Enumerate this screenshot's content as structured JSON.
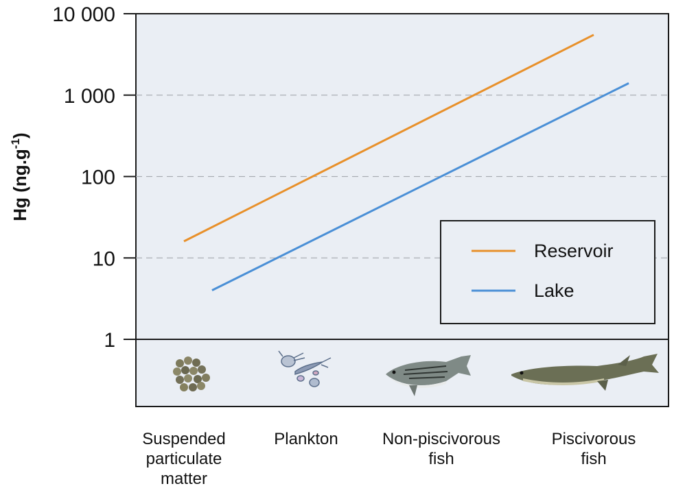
{
  "chart_data": {
    "type": "line",
    "ylabel": "Hg (ng.g",
    "ylabel_sup": "-1",
    "ylabel_close": ")",
    "yscale": "log",
    "ylim": [
      1,
      10000
    ],
    "yticks": [
      1,
      10,
      100,
      1000,
      10000
    ],
    "ytick_labels": [
      "1",
      "10",
      "100",
      "1 000",
      "10 000"
    ],
    "grid": "dashed horizontal at 10, 100, 1 000",
    "categories": [
      [
        "Suspended",
        "particulate",
        "matter"
      ],
      [
        "Plankton"
      ],
      [
        "Non-piscivorous",
        "fish"
      ],
      [
        "Piscivorous",
        "fish"
      ]
    ],
    "category_icons": [
      "particles-icon",
      "plankton-icon",
      "striped-bass-icon",
      "pike-icon"
    ],
    "series": [
      {
        "name": "Reservoir",
        "color": "#e8902a",
        "x": [
          0,
          3
        ],
        "values": [
          16,
          5500
        ]
      },
      {
        "name": "Lake",
        "color": "#4a8fd6",
        "x": [
          0.23,
          3.23
        ],
        "values": [
          4,
          1400
        ]
      }
    ],
    "legend": {
      "position": "lower-right"
    },
    "background": "#eaeef4"
  }
}
